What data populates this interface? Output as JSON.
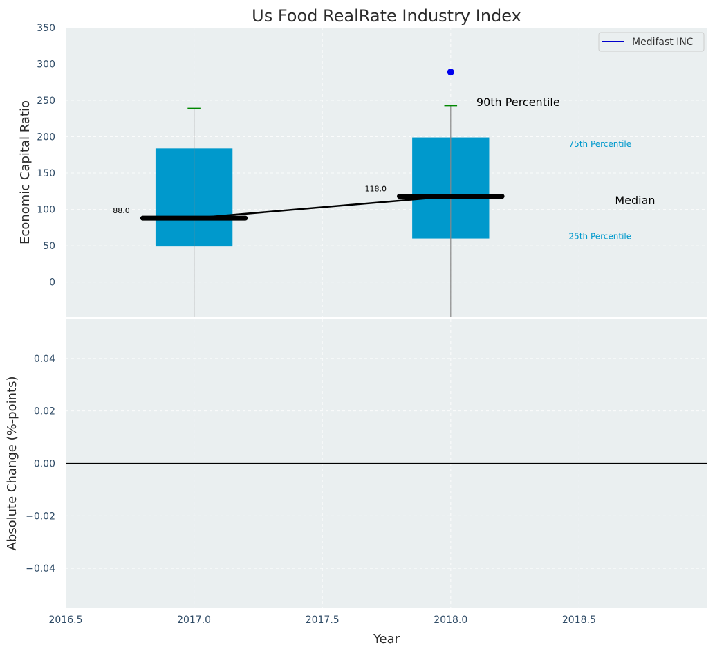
{
  "chart_data": [
    {
      "type": "box",
      "title": "Us Food RealRate Industry Index",
      "xlabel": "",
      "ylabel": "Economic Capital Ratio",
      "xlim": [
        2016.5,
        2019.0
      ],
      "ylim": [
        -48,
        350
      ],
      "yticks": [
        0,
        50,
        100,
        150,
        200,
        250,
        300,
        350
      ],
      "grid": true,
      "legend": {
        "placement": "top-right",
        "entries": [
          {
            "label": "Medifast INC",
            "color": "#0000cc"
          }
        ]
      },
      "boxes": [
        {
          "x": 2017.0,
          "p25": 49,
          "p75": 184,
          "median": 88,
          "p90": 239,
          "whisker_low": -48,
          "median_label": "88.0"
        },
        {
          "x": 2018.0,
          "p25": 60,
          "p75": 199,
          "median": 118,
          "p90": 243,
          "whisker_low": -48,
          "median_label": "118.0"
        }
      ],
      "median_line": {
        "x": [
          2017.0,
          2018.0
        ],
        "y": [
          88,
          118
        ],
        "color": "#000000"
      },
      "series": [
        {
          "name": "Medifast INC",
          "x": [
            2018.0
          ],
          "y": [
            289
          ],
          "color": "#0000ee"
        }
      ],
      "annotations": [
        {
          "text": "90th Percentile",
          "x": 2018.1,
          "y": 248,
          "color": "#000000"
        },
        {
          "text": "75th Percentile",
          "x": 2018.46,
          "y": 190,
          "color": "#0099cc"
        },
        {
          "text": "Median",
          "x": 2018.64,
          "y": 113,
          "color": "#000000"
        },
        {
          "text": "25th Percentile",
          "x": 2018.46,
          "y": 63,
          "color": "#0099cc"
        }
      ],
      "colors": {
        "box": "#0099cc",
        "p90_cap": "#008800",
        "whisker": "#888888",
        "median": "#000000",
        "background": "#eaeff0"
      }
    },
    {
      "type": "line",
      "title": "",
      "xlabel": "Year",
      "ylabel": "Absolute Change (%-points)",
      "xlim": [
        2016.5,
        2019.0
      ],
      "ylim": [
        -0.055,
        0.055
      ],
      "xticks": [
        2016.5,
        2017.0,
        2017.5,
        2018.0,
        2018.5
      ],
      "xtick_labels": [
        "2016.5",
        "2017.0",
        "2017.5",
        "2018.0",
        "2018.5"
      ],
      "yticks": [
        -0.04,
        -0.02,
        0.0,
        0.02,
        0.04
      ],
      "ytick_labels": [
        "−0.04",
        "−0.02",
        "0.00",
        "0.02",
        "0.04"
      ],
      "grid": true,
      "reference_line": {
        "y": 0.0,
        "color": "#000000"
      },
      "colors": {
        "background": "#eaeff0"
      }
    }
  ]
}
